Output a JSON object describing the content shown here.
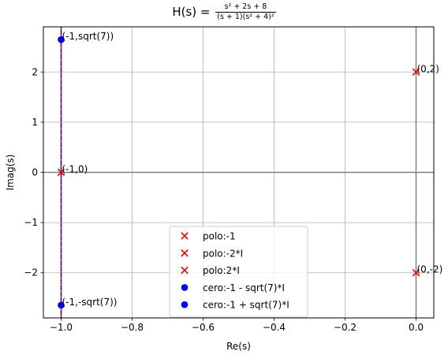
{
  "chart_data": {
    "type": "scatter",
    "title": {
      "prefix": "H(s) = ",
      "numerator": "s² + 2s + 8",
      "denominator": "(s + 1)(s² + 4)²"
    },
    "xlabel": "Re(s)",
    "ylabel": "Imag(s)",
    "xlim": [
      -1.05,
      0.05
    ],
    "ylim": [
      -2.9,
      2.9
    ],
    "x_ticks": [
      -1.0,
      -0.8,
      -0.6,
      -0.4,
      -0.2,
      0.0
    ],
    "x_tick_labels": [
      "−1.0",
      "−0.8",
      "−0.6",
      "−0.4",
      "−0.2",
      "0.0"
    ],
    "y_ticks": [
      -2,
      -1,
      0,
      1,
      2
    ],
    "y_tick_labels": [
      "−2",
      "−1",
      "0",
      "1",
      "2"
    ],
    "grid": true,
    "legend_position": "lower-center",
    "reference_lines": [
      {
        "orientation": "horizontal",
        "value": 0,
        "color": "#808080"
      },
      {
        "orientation": "vertical",
        "value": 0,
        "color": "#808080"
      },
      {
        "orientation": "vertical",
        "value": -1,
        "color": "#ff0000",
        "style": "dashed"
      },
      {
        "orientation": "vertical",
        "value": -1,
        "color": "#0000ff",
        "style": "dashed"
      }
    ],
    "series": [
      {
        "name": "polo:-1",
        "marker": "x",
        "color": "#ff0000",
        "points": [
          {
            "x": -1,
            "y": 0,
            "label": "(-1,0)"
          }
        ]
      },
      {
        "name": "polo:-2*I",
        "marker": "x",
        "color": "#ff0000",
        "points": [
          {
            "x": 0,
            "y": -2,
            "label": "(0,-2)"
          }
        ]
      },
      {
        "name": "polo:2*I",
        "marker": "x",
        "color": "#ff0000",
        "points": [
          {
            "x": 0,
            "y": 2,
            "label": "(0,2)"
          }
        ]
      },
      {
        "name": "cero:-1 - sqrt(7)*I",
        "marker": "o",
        "color": "#0000ff",
        "points": [
          {
            "x": -1,
            "y": -2.6458,
            "label": "(-1,-sqrt(7))"
          }
        ]
      },
      {
        "name": "cero:-1 + sqrt(7)*I",
        "marker": "o",
        "color": "#0000ff",
        "points": [
          {
            "x": -1,
            "y": 2.6458,
            "label": "(-1,sqrt(7))"
          }
        ]
      }
    ]
  }
}
